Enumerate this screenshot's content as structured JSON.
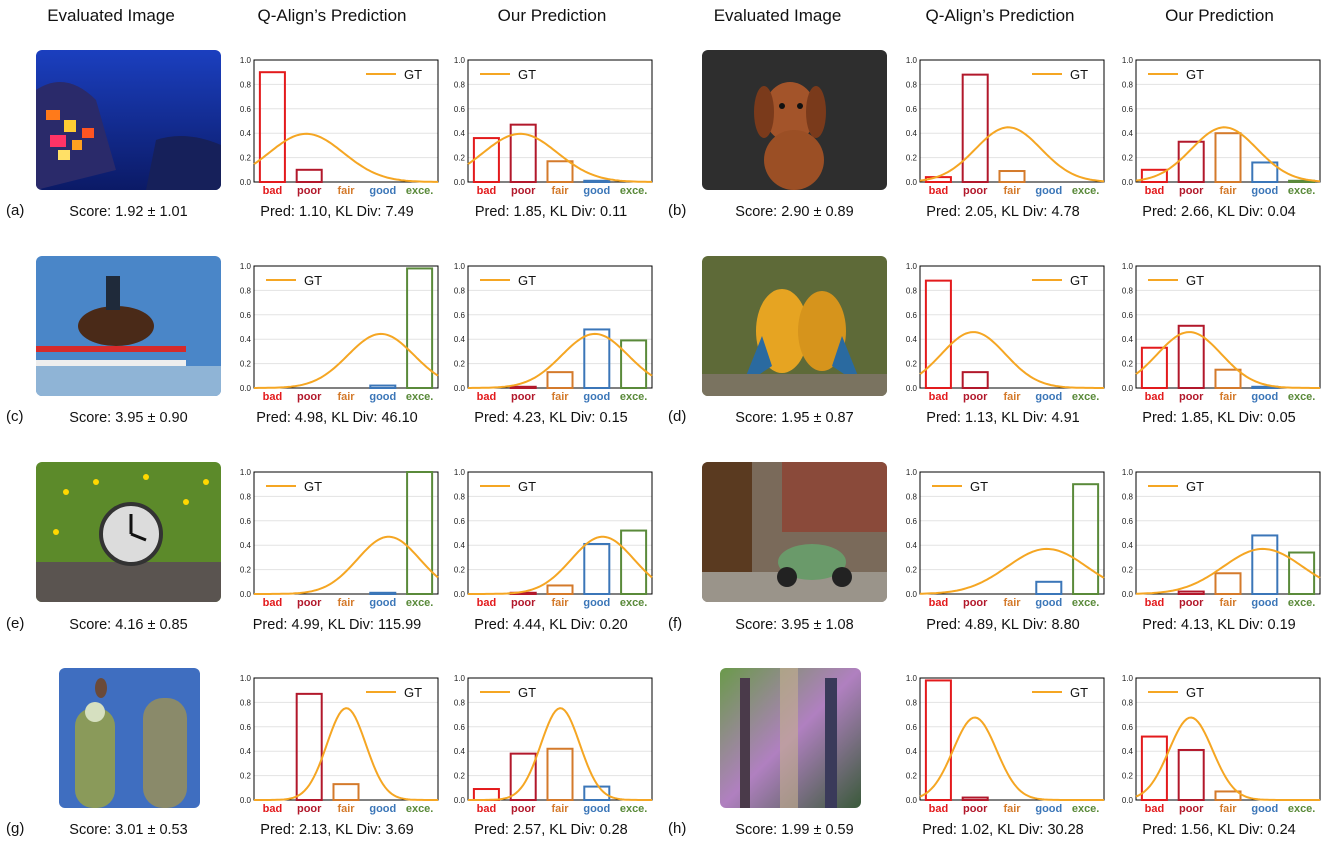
{
  "headers": [
    "Evaluated Image",
    "Q-Align’s Prediction",
    "Our Prediction",
    "Evaluated Image",
    "Q-Align’s Prediction",
    "Our Prediction"
  ],
  "categories": [
    "bad",
    "poor",
    "fair",
    "good",
    "exce."
  ],
  "category_colors": [
    "#e31a1c",
    "#b2182b",
    "#d47a2b",
    "#3b76b8",
    "#5a8a3a"
  ],
  "gt_color": "#f5a623",
  "legend_label": "GT",
  "y_ticks": [
    "0.0",
    "0.2",
    "0.4",
    "0.6",
    "0.8",
    "1.0"
  ],
  "chart_data": [
    {
      "panel": "a",
      "label": "(a)",
      "score": "Score: 1.92 ± 1.01",
      "gt_mean": 1.92,
      "gt_std": 1.01,
      "type": "bar",
      "ylim": [
        0,
        1
      ],
      "qalign": {
        "values": [
          0.9,
          0.1,
          0,
          0,
          0
        ],
        "caption": "Pred: 1.10, KL Div: 7.49",
        "legend": "top-right"
      },
      "ours": {
        "values": [
          0.36,
          0.47,
          0.17,
          0.01,
          0
        ],
        "caption": "Pred: 1.85, KL Div: 0.11",
        "legend": "top-left"
      }
    },
    {
      "panel": "b",
      "label": "(b)",
      "score": "Score: 2.90 ± 0.89",
      "gt_mean": 2.9,
      "gt_std": 0.89,
      "type": "bar",
      "ylim": [
        0,
        1
      ],
      "qalign": {
        "values": [
          0.04,
          0.88,
          0.09,
          0,
          0
        ],
        "caption": "Pred: 2.05, KL Div: 4.78",
        "legend": "top-right"
      },
      "ours": {
        "values": [
          0.1,
          0.33,
          0.4,
          0.16,
          0.01
        ],
        "caption": "Pred: 2.66, KL Div: 0.04",
        "legend": "top-left"
      }
    },
    {
      "panel": "c",
      "label": "(c)",
      "score": "Score: 3.95 ± 0.90",
      "gt_mean": 3.95,
      "gt_std": 0.9,
      "type": "bar",
      "ylim": [
        0,
        1
      ],
      "qalign": {
        "values": [
          0,
          0,
          0,
          0.02,
          0.98
        ],
        "caption": "Pred: 4.98, KL Div: 46.10",
        "legend": "top-left"
      },
      "ours": {
        "values": [
          0,
          0.01,
          0.13,
          0.48,
          0.39
        ],
        "caption": "Pred: 4.23, KL Div: 0.15",
        "legend": "top-left"
      }
    },
    {
      "panel": "d",
      "label": "(d)",
      "score": "Score: 1.95 ± 0.87",
      "gt_mean": 1.95,
      "gt_std": 0.87,
      "type": "bar",
      "ylim": [
        0,
        1
      ],
      "qalign": {
        "values": [
          0.88,
          0.13,
          0,
          0,
          0
        ],
        "caption": "Pred: 1.13, KL Div: 4.91",
        "legend": "top-right"
      },
      "ours": {
        "values": [
          0.33,
          0.51,
          0.15,
          0.01,
          0
        ],
        "caption": "Pred: 1.85, KL Div: 0.05",
        "legend": "top-left"
      }
    },
    {
      "panel": "e",
      "label": "(e)",
      "score": "Score: 4.16 ± 0.85",
      "gt_mean": 4.16,
      "gt_std": 0.85,
      "type": "bar",
      "ylim": [
        0,
        1
      ],
      "qalign": {
        "values": [
          0,
          0,
          0,
          0.01,
          1.0
        ],
        "caption": "Pred: 4.99, KL Div: 115.99",
        "legend": "top-left"
      },
      "ours": {
        "values": [
          0,
          0.01,
          0.07,
          0.41,
          0.52
        ],
        "caption": "Pred: 4.44, KL Div: 0.20",
        "legend": "top-left"
      }
    },
    {
      "panel": "f",
      "label": "(f)",
      "score": "Score: 3.95 ± 1.08",
      "gt_mean": 3.95,
      "gt_std": 1.08,
      "type": "bar",
      "ylim": [
        0,
        1
      ],
      "qalign": {
        "values": [
          0,
          0,
          0,
          0.1,
          0.9
        ],
        "caption": "Pred: 4.89, KL Div: 8.80",
        "legend": "top-left"
      },
      "ours": {
        "values": [
          0,
          0.02,
          0.17,
          0.48,
          0.34
        ],
        "caption": "Pred: 4.13, KL Div: 0.19",
        "legend": "top-left"
      }
    },
    {
      "panel": "g",
      "label": "(g)",
      "score": "Score: 3.01 ± 0.53",
      "gt_mean": 3.01,
      "gt_std": 0.53,
      "type": "bar",
      "ylim": [
        0,
        1
      ],
      "qalign": {
        "values": [
          0,
          0.87,
          0.13,
          0,
          0
        ],
        "caption": "Pred: 2.13, KL Div: 3.69",
        "legend": "top-right"
      },
      "ours": {
        "values": [
          0.09,
          0.38,
          0.42,
          0.11,
          0
        ],
        "caption": "Pred: 2.57, KL Div: 0.28",
        "legend": "top-left"
      }
    },
    {
      "panel": "h",
      "label": "(h)",
      "score": "Score: 1.99 ± 0.59",
      "gt_mean": 1.99,
      "gt_std": 0.59,
      "type": "bar",
      "ylim": [
        0,
        1
      ],
      "qalign": {
        "values": [
          0.98,
          0.02,
          0,
          0,
          0
        ],
        "caption": "Pred: 1.02, KL Div: 30.28",
        "legend": "top-right"
      },
      "ours": {
        "values": [
          0.52,
          0.41,
          0.07,
          0,
          0
        ],
        "caption": "Pred: 1.56, KL Div: 0.24",
        "legend": "top-left"
      }
    }
  ]
}
